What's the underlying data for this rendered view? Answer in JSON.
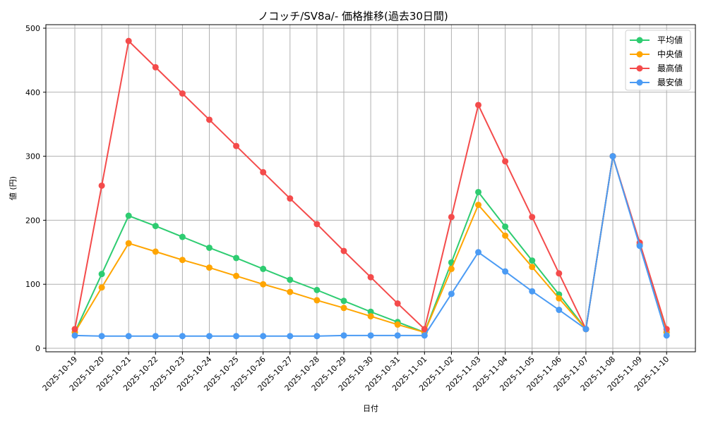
{
  "chart_data": {
    "type": "line",
    "title": "ノコッチ/SV8a/- 価格推移(過去30日間)",
    "xlabel": "日付",
    "ylabel": "値 (円)",
    "ylim": [
      0,
      500
    ],
    "yticks": [
      0,
      100,
      200,
      300,
      400,
      500
    ],
    "grid": true,
    "legend_position": "upper right",
    "categories": [
      "2025-10-19",
      "2025-10-20",
      "2025-10-21",
      "2025-10-22",
      "2025-10-23",
      "2025-10-24",
      "2025-10-25",
      "2025-10-26",
      "2025-10-27",
      "2025-10-28",
      "2025-10-29",
      "2025-10-30",
      "2025-10-31",
      "2025-11-01",
      "2025-11-02",
      "2025-11-03",
      "2025-11-04",
      "2025-11-05",
      "2025-11-06",
      "2025-11-07",
      "2025-11-08",
      "2025-11-09",
      "2025-11-10"
    ],
    "series": [
      {
        "name": "平均値",
        "color": "#2ecc71",
        "values": [
          25,
          116,
          207,
          191,
          174,
          157,
          141,
          124,
          107,
          91,
          74,
          57,
          41,
          25,
          134,
          244,
          190,
          137,
          84,
          30,
          300,
          162,
          25
        ]
      },
      {
        "name": "中央値",
        "color": "#ffa500",
        "values": [
          25,
          95,
          164,
          151,
          138,
          126,
          113,
          100,
          88,
          75,
          63,
          50,
          37,
          25,
          124,
          224,
          176,
          127,
          78,
          30,
          300,
          162,
          25
        ]
      },
      {
        "name": "最高値",
        "color": "#f44b4b",
        "values": [
          30,
          254,
          480,
          439,
          398,
          357,
          316,
          275,
          234,
          194,
          152,
          111,
          70,
          30,
          205,
          380,
          292,
          205,
          117,
          30,
          300,
          165,
          30
        ]
      },
      {
        "name": "最安値",
        "color": "#4b9bf4",
        "values": [
          20,
          19,
          19,
          19,
          19,
          19,
          19,
          19,
          19,
          19,
          20,
          20,
          20,
          20,
          85,
          150,
          120,
          89,
          60,
          30,
          300,
          160,
          20
        ]
      }
    ]
  }
}
